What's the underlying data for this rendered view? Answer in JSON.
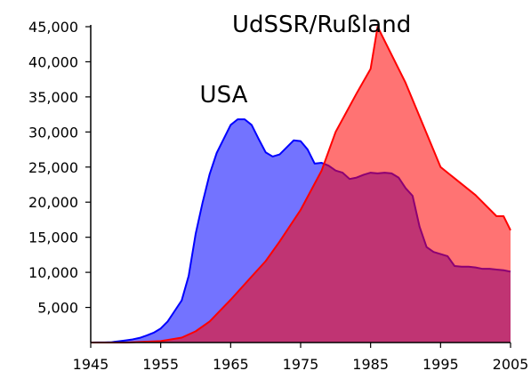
{
  "chart_data": {
    "type": "area",
    "title": "",
    "xlabel": "",
    "ylabel": "",
    "xlim": [
      1945,
      2005
    ],
    "ylim": [
      0,
      45000
    ],
    "grid": false,
    "legend": "none",
    "x_ticks": [
      "1945",
      "1955",
      "1965",
      "1975",
      "1985",
      "1995",
      "2005"
    ],
    "y_ticks": [
      "5,000",
      "10,000",
      "15,000",
      "20,000",
      "25,000",
      "30,000",
      "35,000",
      "40,000",
      "45,000"
    ],
    "series": [
      {
        "name": "USA",
        "color": "#0000ff",
        "fill": "rgba(0,0,255,0.55)",
        "x": [
          1945,
          1946,
          1947,
          1948,
          1949,
          1950,
          1951,
          1952,
          1953,
          1954,
          1955,
          1956,
          1957,
          1958,
          1959,
          1960,
          1961,
          1962,
          1963,
          1964,
          1965,
          1966,
          1967,
          1968,
          1969,
          1970,
          1971,
          1972,
          1973,
          1974,
          1975,
          1976,
          1977,
          1978,
          1979,
          1980,
          1981,
          1982,
          1983,
          1984,
          1985,
          1986,
          1987,
          1988,
          1989,
          1990,
          1991,
          1992,
          1993,
          1994,
          1995,
          1996,
          1997,
          1998,
          1999,
          2000,
          2001,
          2002,
          2003,
          2004,
          2005
        ],
        "values": [
          6,
          9,
          13,
          50,
          170,
          300,
          450,
          660,
          1000,
          1400,
          2000,
          3000,
          4500,
          6000,
          9500,
          15500,
          20000,
          24000,
          27000,
          29000,
          31000,
          31800,
          31800,
          31000,
          29000,
          27100,
          26500,
          26800,
          27800,
          28800,
          28700,
          27500,
          25500,
          25600,
          25200,
          24500,
          24200,
          23300,
          23500,
          23900,
          24200,
          24100,
          24200,
          24100,
          23500,
          22000,
          20900,
          16500,
          13600,
          12900,
          12600,
          12300,
          10900,
          10800,
          10800,
          10700,
          10500,
          10500,
          10400,
          10300,
          10100
        ],
        "label_x": 1964,
        "label_y": 35500
      },
      {
        "name": "UdSSR/Rußland",
        "color": "#ff0000",
        "fill": "rgba(255,0,0,0.55)",
        "x": [
          1945,
          1949,
          1950,
          1955,
          1958,
          1960,
          1962,
          1965,
          1968,
          1970,
          1972,
          1975,
          1978,
          1980,
          1983,
          1985,
          1986,
          1987,
          1990,
          1995,
          2000,
          2003,
          2004,
          2005
        ],
        "values": [
          0,
          1,
          5,
          200,
          700,
          1600,
          3000,
          6100,
          9400,
          11600,
          14400,
          18900,
          24500,
          30000,
          35500,
          39000,
          45000,
          43000,
          37000,
          25000,
          21000,
          18000,
          18000,
          16000
        ],
        "label_x": 1978,
        "label_y": 45500
      }
    ]
  }
}
